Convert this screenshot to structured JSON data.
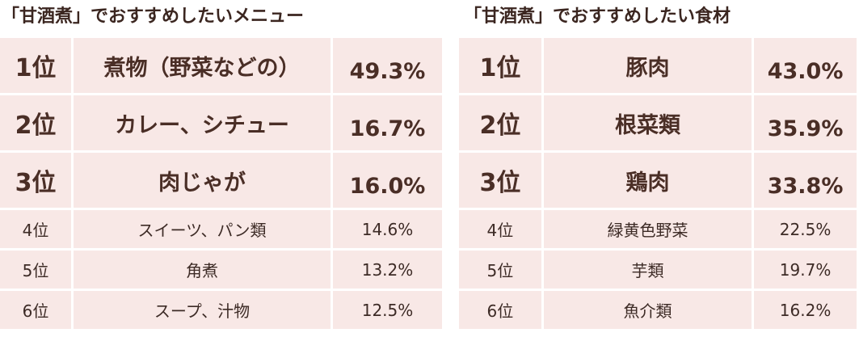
{
  "menu": {
    "title": "「甘酒煮」でおすすめしたいメニュー",
    "rows": [
      {
        "rank": "1位",
        "name": "煮物（野菜などの）",
        "pct": "49.3%"
      },
      {
        "rank": "2位",
        "name": "カレー、シチュー",
        "pct": "16.7%"
      },
      {
        "rank": "3位",
        "name": "肉じゃが",
        "pct": "16.0%"
      },
      {
        "rank": "4位",
        "name": "スイーツ、パン類",
        "pct": "14.6%"
      },
      {
        "rank": "5位",
        "name": "角煮",
        "pct": "13.2%"
      },
      {
        "rank": "6位",
        "name": "スープ、汁物",
        "pct": "12.5%"
      }
    ]
  },
  "ingredients": {
    "title": "「甘酒煮」でおすすめしたい食材",
    "rows": [
      {
        "rank": "1位",
        "name": "豚肉",
        "pct": "43.0%"
      },
      {
        "rank": "2位",
        "name": "根菜類",
        "pct": "35.9%"
      },
      {
        "rank": "3位",
        "name": "鶏肉",
        "pct": "33.8%"
      },
      {
        "rank": "4位",
        "name": "緑黄色野菜",
        "pct": "22.5%"
      },
      {
        "rank": "5位",
        "name": "芋類",
        "pct": "19.7%"
      },
      {
        "rank": "6位",
        "name": "魚介類",
        "pct": "16.2%"
      }
    ]
  },
  "colors": {
    "cell_background": "#f8e8e6",
    "text": "#4a2e26"
  }
}
